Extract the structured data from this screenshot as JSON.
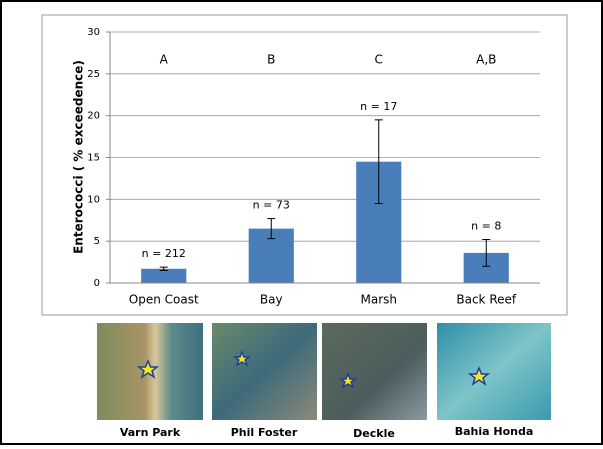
{
  "chart_data": {
    "type": "bar",
    "ylabel": "Enterococci ( % exceedence)",
    "categories": [
      "Open Coast",
      "Bay",
      "Marsh",
      "Back Reef"
    ],
    "values": [
      1.7,
      6.5,
      14.5,
      3.6
    ],
    "errors": [
      0.2,
      1.2,
      5,
      1.6
    ],
    "group_labels": [
      "A",
      "B",
      "C",
      "A,B"
    ],
    "n_labels": [
      "n = 212",
      "n = 73",
      "n = 17",
      "n = 8"
    ],
    "color": "#4a7ebb",
    "ylim": [
      0,
      30
    ],
    "yticks": [
      0,
      5,
      10,
      15,
      20,
      25,
      30
    ],
    "grid": true
  },
  "sites": [
    "Varn Park",
    "Phil Foster",
    "Deckle",
    "Bahia Honda"
  ]
}
